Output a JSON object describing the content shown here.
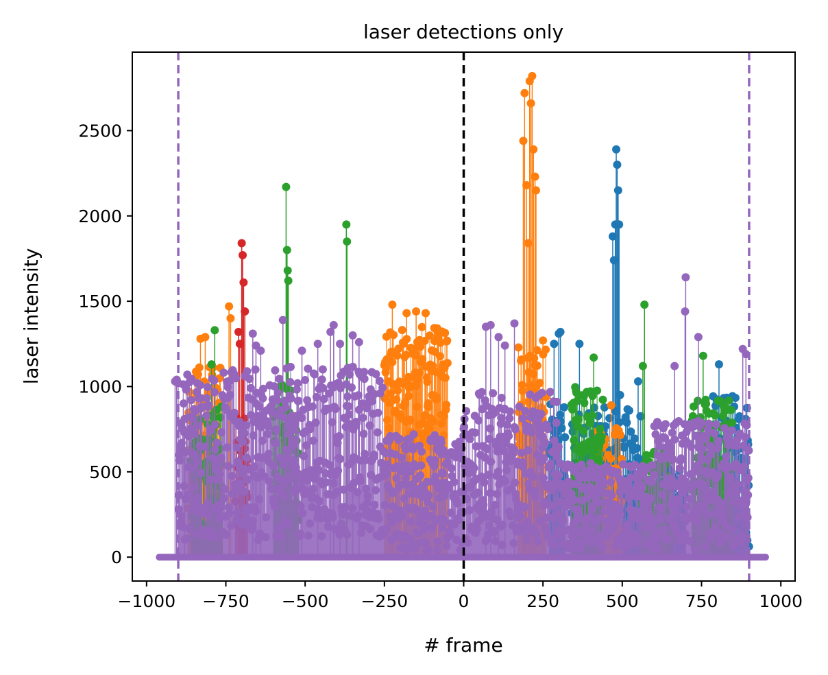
{
  "chart_data": {
    "type": "line",
    "title": "laser detections only",
    "xlabel": "# frame",
    "ylabel": "laser intensity",
    "xlim": [
      -1045,
      1045
    ],
    "ylim": [
      -140,
      2960
    ],
    "xticks": [
      -1000,
      -750,
      -500,
      -250,
      0,
      250,
      500,
      750,
      1000
    ],
    "xtick_labels": [
      "−1000",
      "−750",
      "−500",
      "−250",
      "0",
      "250",
      "500",
      "750",
      "1000"
    ],
    "yticks": [
      0,
      500,
      1000,
      1500,
      2000,
      2500
    ],
    "ytick_labels": [
      "0",
      "500",
      "1000",
      "1500",
      "2000",
      "2500"
    ],
    "grid": false,
    "legend": "none",
    "reference_lines": [
      {
        "x": 0,
        "color": "#000000",
        "style": "dashed"
      },
      {
        "x": -900,
        "color": "#9467bd",
        "style": "dashed"
      },
      {
        "x": 900,
        "color": "#9467bd",
        "style": "dashed"
      }
    ],
    "series": [
      {
        "color": "#1f77b4",
        "clusters": [
          {
            "range": [
              270,
              320
            ],
            "base": 500,
            "spread": 400
          },
          {
            "range": [
              340,
              560
            ],
            "base": 480,
            "spread": 400
          },
          {
            "range": [
              600,
              700
            ],
            "base": 300,
            "spread": 250
          },
          {
            "range": [
              780,
              900
            ],
            "base": 500,
            "spread": 450
          }
        ],
        "peaks": [
          {
            "x": 470,
            "y": 1880
          },
          {
            "x": 474,
            "y": 1740
          },
          {
            "x": 478,
            "y": 1950
          },
          {
            "x": 481,
            "y": 2390
          },
          {
            "x": 484,
            "y": 2300
          },
          {
            "x": 487,
            "y": 2150
          },
          {
            "x": 490,
            "y": 1950
          },
          {
            "x": 493,
            "y": 950
          },
          {
            "x": 285,
            "y": 1250
          },
          {
            "x": 300,
            "y": 1310
          },
          {
            "x": 305,
            "y": 1320
          },
          {
            "x": 365,
            "y": 1250
          },
          {
            "x": 550,
            "y": 1030
          },
          {
            "x": 805,
            "y": 1130
          }
        ]
      },
      {
        "color": "#ff7f0e",
        "clusters": [
          {
            "range": [
              -870,
              -760
            ],
            "base": 650,
            "spread": 500
          },
          {
            "range": [
              -250,
              -50
            ],
            "base": 950,
            "spread": 400
          },
          {
            "range": [
              170,
              260
            ],
            "base": 700,
            "spread": 550
          },
          {
            "range": [
              420,
              500
            ],
            "base": 450,
            "spread": 350
          }
        ],
        "peaks": [
          {
            "x": -830,
            "y": 1280
          },
          {
            "x": -815,
            "y": 1290
          },
          {
            "x": -740,
            "y": 1470
          },
          {
            "x": -735,
            "y": 1400
          },
          {
            "x": -225,
            "y": 1480
          },
          {
            "x": -180,
            "y": 1430
          },
          {
            "x": -150,
            "y": 1440
          },
          {
            "x": -120,
            "y": 1430
          },
          {
            "x": 188,
            "y": 2440
          },
          {
            "x": 192,
            "y": 2720
          },
          {
            "x": 198,
            "y": 2180
          },
          {
            "x": 203,
            "y": 1840
          },
          {
            "x": 208,
            "y": 2790
          },
          {
            "x": 212,
            "y": 2660
          },
          {
            "x": 216,
            "y": 2820
          },
          {
            "x": 220,
            "y": 2390
          },
          {
            "x": 225,
            "y": 2230
          },
          {
            "x": 228,
            "y": 2150
          },
          {
            "x": 250,
            "y": 1270
          },
          {
            "x": 465,
            "y": 890
          }
        ]
      },
      {
        "color": "#2ca02c",
        "clusters": [
          {
            "range": [
              -860,
              -760
            ],
            "base": 500,
            "spread": 400
          },
          {
            "range": [
              -600,
              -520
            ],
            "base": 600,
            "spread": 450
          },
          {
            "range": [
              340,
              440
            ],
            "base": 550,
            "spread": 450
          },
          {
            "range": [
              560,
              660
            ],
            "base": 350,
            "spread": 300
          },
          {
            "range": [
              720,
              850
            ],
            "base": 500,
            "spread": 450
          }
        ],
        "peaks": [
          {
            "x": -560,
            "y": 2170
          },
          {
            "x": -557,
            "y": 1800
          },
          {
            "x": -555,
            "y": 1680
          },
          {
            "x": -553,
            "y": 1620
          },
          {
            "x": -370,
            "y": 1950
          },
          {
            "x": -368,
            "y": 1850
          },
          {
            "x": -785,
            "y": 1330
          },
          {
            "x": -795,
            "y": 1130
          },
          {
            "x": 410,
            "y": 1170
          },
          {
            "x": 570,
            "y": 1480
          },
          {
            "x": 565,
            "y": 1120
          },
          {
            "x": 755,
            "y": 1180
          }
        ]
      },
      {
        "color": "#d62728",
        "clusters": [
          {
            "range": [
              -720,
              -680
            ],
            "base": 500,
            "spread": 350
          }
        ],
        "peaks": [
          {
            "x": -700,
            "y": 1840
          },
          {
            "x": -697,
            "y": 1770
          },
          {
            "x": -694,
            "y": 1610
          },
          {
            "x": -690,
            "y": 1440
          },
          {
            "x": -710,
            "y": 1320
          },
          {
            "x": -706,
            "y": 1250
          }
        ]
      },
      {
        "color": "#9467bd",
        "clusters": [
          {
            "range": [
              -900,
              -560
            ],
            "base": 600,
            "spread": 500
          },
          {
            "range": [
              -560,
              -250
            ],
            "base": 620,
            "spread": 500
          },
          {
            "range": [
              -250,
              0
            ],
            "base": 380,
            "spread": 350
          },
          {
            "range": [
              0,
              300
            ],
            "base": 520,
            "spread": 450
          },
          {
            "range": [
              300,
              600
            ],
            "base": 300,
            "spread": 250
          },
          {
            "range": [
              600,
              900
            ],
            "base": 420,
            "spread": 380
          }
        ],
        "peaks": [
          {
            "x": -910,
            "y": 1030
          },
          {
            "x": -905,
            "y": 1040
          },
          {
            "x": -880,
            "y": 810
          },
          {
            "x": -665,
            "y": 1310
          },
          {
            "x": -655,
            "y": 1240
          },
          {
            "x": -640,
            "y": 1210
          },
          {
            "x": -570,
            "y": 1390
          },
          {
            "x": -510,
            "y": 1210
          },
          {
            "x": -460,
            "y": 1250
          },
          {
            "x": -420,
            "y": 1320
          },
          {
            "x": -410,
            "y": 1360
          },
          {
            "x": -390,
            "y": 1250
          },
          {
            "x": -350,
            "y": 1300
          },
          {
            "x": -330,
            "y": 1260
          },
          {
            "x": 70,
            "y": 1350
          },
          {
            "x": 85,
            "y": 1360
          },
          {
            "x": 110,
            "y": 1290
          },
          {
            "x": 160,
            "y": 1370
          },
          {
            "x": 130,
            "y": 1240
          },
          {
            "x": 700,
            "y": 1640
          },
          {
            "x": 698,
            "y": 1440
          },
          {
            "x": 740,
            "y": 1290
          },
          {
            "x": 665,
            "y": 1120
          },
          {
            "x": 880,
            "y": 1220
          },
          {
            "x": 890,
            "y": 1190
          }
        ]
      }
    ]
  }
}
